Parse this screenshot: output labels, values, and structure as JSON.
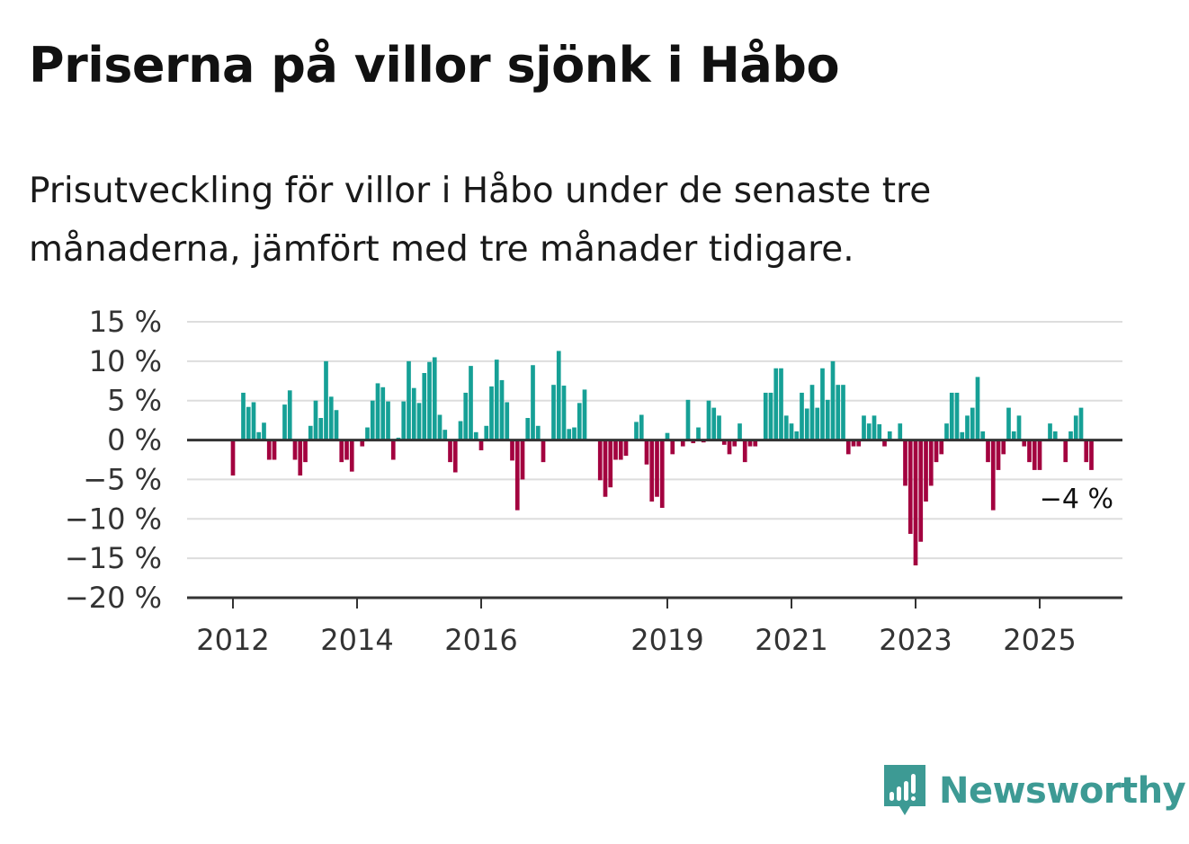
{
  "title": "Priserna på villor sjönk i Håbo",
  "subtitle": "Prisutveckling för villor i Håbo under de senaste tre månaderna, jämfört med tre månader tidigare.",
  "brand": {
    "name": "Newsworthy",
    "color": "#3d9a94"
  },
  "colors": {
    "positive": "#16a096",
    "negative": "#a3023f",
    "grid": "#dddddd",
    "axis": "#333333"
  },
  "chart_data": {
    "type": "bar",
    "x_start": "2012-01",
    "ylim": [
      -20,
      15
    ],
    "yticks": [
      15,
      10,
      5,
      0,
      -5,
      -10,
      -15,
      -20
    ],
    "ytick_labels": [
      "15 %",
      "10 %",
      "5 %",
      "0 %",
      "−5 %",
      "−10 %",
      "−15 %",
      "−20 %"
    ],
    "xticks": [
      {
        "label": "2012",
        "date": "2012-01"
      },
      {
        "label": "2014",
        "date": "2014-01"
      },
      {
        "label": "2016",
        "date": "2016-01"
      },
      {
        "label": "2019",
        "date": "2019-01"
      },
      {
        "label": "2021",
        "date": "2021-01"
      },
      {
        "label": "2023",
        "date": "2023-01"
      },
      {
        "label": "2025",
        "date": "2025-01"
      }
    ],
    "values": [
      -4.5,
      null,
      6.0,
      4.2,
      4.8,
      1.0,
      2.2,
      -2.5,
      -2.5,
      null,
      4.5,
      6.3,
      -2.5,
      -4.5,
      -2.8,
      1.8,
      5.0,
      2.8,
      10.0,
      5.5,
      3.8,
      -2.8,
      -2.5,
      -4.0,
      null,
      -0.8,
      1.6,
      5.0,
      7.2,
      6.7,
      4.9,
      -2.5,
      0.3,
      4.9,
      10.0,
      6.6,
      4.7,
      8.5,
      9.9,
      10.5,
      3.2,
      1.3,
      -2.8,
      -4.1,
      2.4,
      6.0,
      9.4,
      1.0,
      -1.3,
      1.8,
      6.8,
      10.2,
      7.6,
      4.8,
      -2.6,
      -8.9,
      -5.0,
      2.8,
      9.5,
      1.8,
      -2.8,
      null,
      7.0,
      11.3,
      6.9,
      1.4,
      1.6,
      4.7,
      6.4,
      null,
      null,
      -5.1,
      -7.2,
      -6.0,
      -2.5,
      -2.5,
      -2.0,
      null,
      2.3,
      3.2,
      -3.1,
      -7.8,
      -7.2,
      -8.6,
      0.9,
      -1.8,
      null,
      -0.8,
      5.1,
      -0.4,
      1.6,
      -0.3,
      5.0,
      4.1,
      3.1,
      -0.6,
      -1.8,
      -0.8,
      2.1,
      -2.8,
      -0.8,
      -0.8,
      null,
      6.0,
      6.0,
      9.1,
      9.1,
      3.1,
      2.1,
      1.1,
      6.0,
      4.0,
      7.0,
      4.1,
      9.1,
      5.1,
      10.0,
      7.0,
      7.0,
      -1.8,
      -0.8,
      -0.8,
      3.1,
      2.1,
      3.1,
      2.0,
      -0.8,
      1.1,
      null,
      2.1,
      -5.8,
      -11.9,
      -15.9,
      -12.9,
      -7.8,
      -5.8,
      -2.8,
      -1.8,
      2.1,
      6.0,
      6.0,
      1.0,
      3.1,
      4.1,
      8.0,
      1.1,
      -2.8,
      -8.9,
      -3.8,
      -1.8,
      4.1,
      1.1,
      3.1,
      -0.8,
      -2.8,
      -3.8,
      -3.8,
      null,
      2.1,
      1.1,
      null,
      -2.8,
      1.1,
      3.1,
      4.1,
      -2.8,
      -3.8
    ],
    "annotation": "−4 %"
  }
}
